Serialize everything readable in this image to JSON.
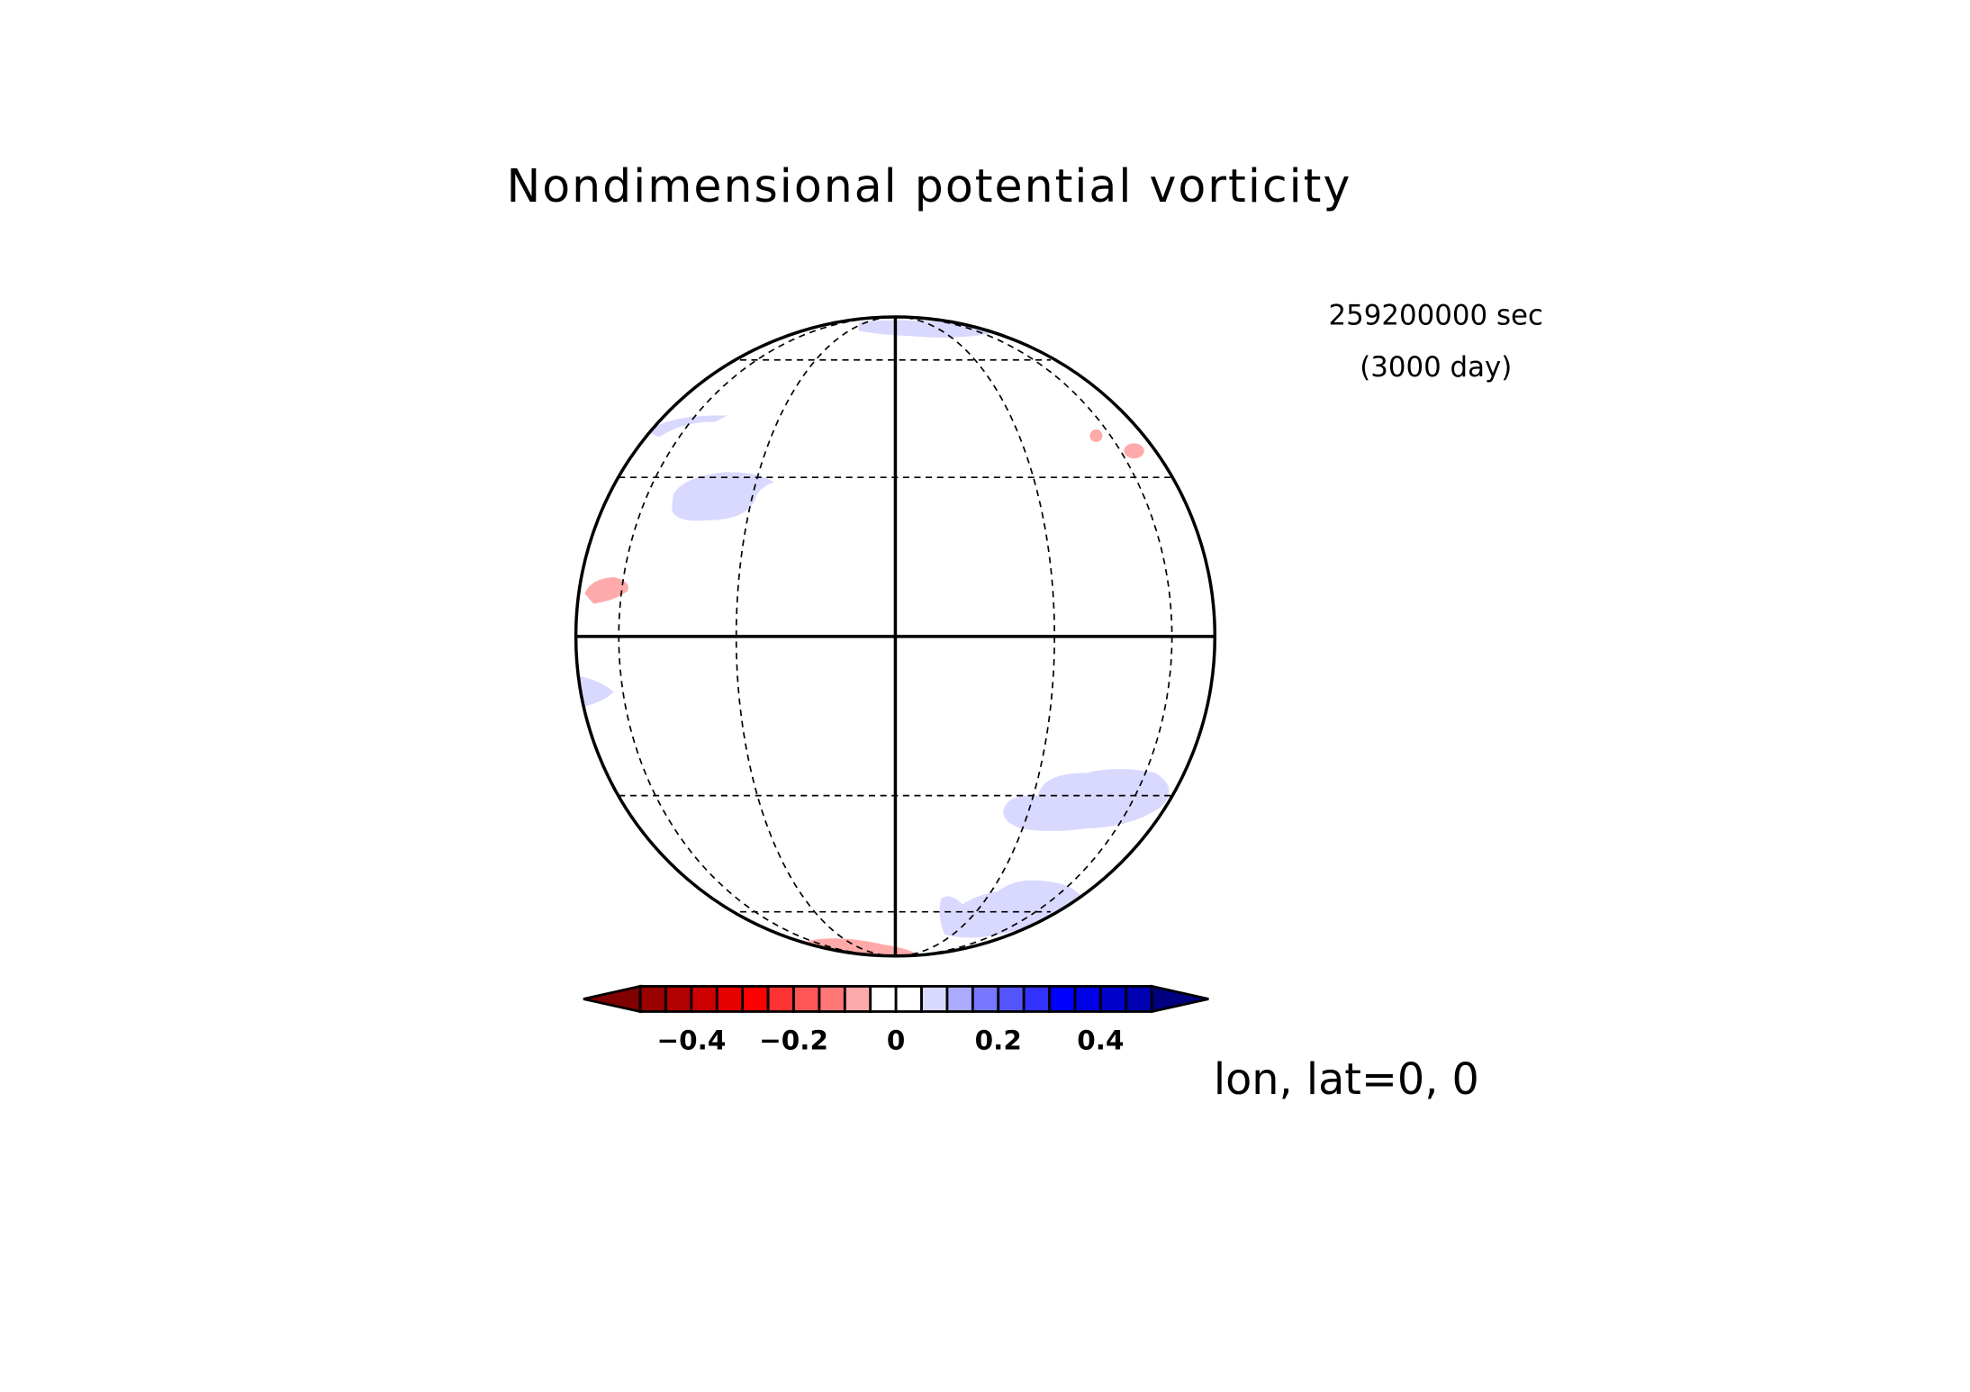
{
  "title": "Nondimensional potential vorticity",
  "time_sec": "259200000 sec",
  "time_day": "(3000 day)",
  "projection": "lon, lat=0, 0",
  "colorbar": {
    "levels": [
      -0.5,
      -0.45,
      -0.4,
      -0.35,
      -0.3,
      -0.25,
      -0.2,
      -0.15,
      -0.1,
      -0.05,
      0,
      0.05,
      0.1,
      0.15,
      0.2,
      0.25,
      0.3,
      0.35,
      0.4,
      0.45,
      0.5
    ],
    "colors": [
      "#800000",
      "#990000",
      "#b30000",
      "#cc0000",
      "#e60000",
      "#ff0000",
      "#ff3333",
      "#ff5555",
      "#ff7777",
      "#ffaaaa",
      "#ffffff",
      "#ffffff",
      "#d9d9ff",
      "#aaaaff",
      "#7777ff",
      "#5555ff",
      "#3333ff",
      "#0000ff",
      "#0000e6",
      "#0000cc",
      "#0000b3",
      "#000080"
    ],
    "ticks": [
      {
        "value": -0.4,
        "label": "−0.4"
      },
      {
        "value": -0.2,
        "label": "−0.2"
      },
      0,
      0.2,
      0.4
    ]
  }
}
